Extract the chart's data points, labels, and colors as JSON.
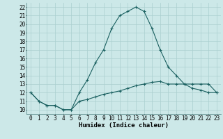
{
  "xlabel": "Humidex (Indice chaleur)",
  "ylabel": "",
  "bg_color": "#cce8e8",
  "grid_color": "#aacfcf",
  "line_color": "#1a6060",
  "line1_x": [
    0,
    1,
    2,
    3,
    4,
    5,
    6,
    7,
    8,
    9,
    10,
    11,
    12,
    13,
    14,
    15,
    16,
    17,
    18,
    19,
    20,
    21,
    22,
    23
  ],
  "line1_y": [
    12.0,
    11.0,
    10.5,
    10.5,
    10.0,
    10.0,
    12.0,
    13.5,
    15.5,
    17.0,
    19.5,
    21.0,
    21.5,
    22.0,
    21.5,
    19.5,
    17.0,
    15.0,
    14.0,
    13.0,
    13.0,
    13.0,
    13.0,
    12.0
  ],
  "line2_x": [
    0,
    1,
    2,
    3,
    4,
    5,
    6,
    7,
    8,
    9,
    10,
    11,
    12,
    13,
    14,
    15,
    16,
    17,
    18,
    19,
    20,
    21,
    22,
    23
  ],
  "line2_y": [
    12.0,
    11.0,
    10.5,
    10.5,
    10.0,
    10.0,
    11.0,
    11.2,
    11.5,
    11.8,
    12.0,
    12.2,
    12.5,
    12.8,
    13.0,
    13.2,
    13.3,
    13.0,
    13.0,
    13.0,
    12.5,
    12.3,
    12.0,
    12.0
  ],
  "ylim": [
    9.5,
    22.5
  ],
  "xlim": [
    -0.5,
    23.5
  ],
  "yticks": [
    10,
    11,
    12,
    13,
    14,
    15,
    16,
    17,
    18,
    19,
    20,
    21,
    22
  ],
  "xticks": [
    0,
    1,
    2,
    3,
    4,
    5,
    6,
    7,
    8,
    9,
    10,
    11,
    12,
    13,
    14,
    15,
    16,
    17,
    18,
    19,
    20,
    21,
    22,
    23
  ],
  "xlabel_fontsize": 6.5,
  "tick_fontsize": 5.5,
  "marker": "+",
  "marker_size": 3,
  "linewidth": 0.8
}
